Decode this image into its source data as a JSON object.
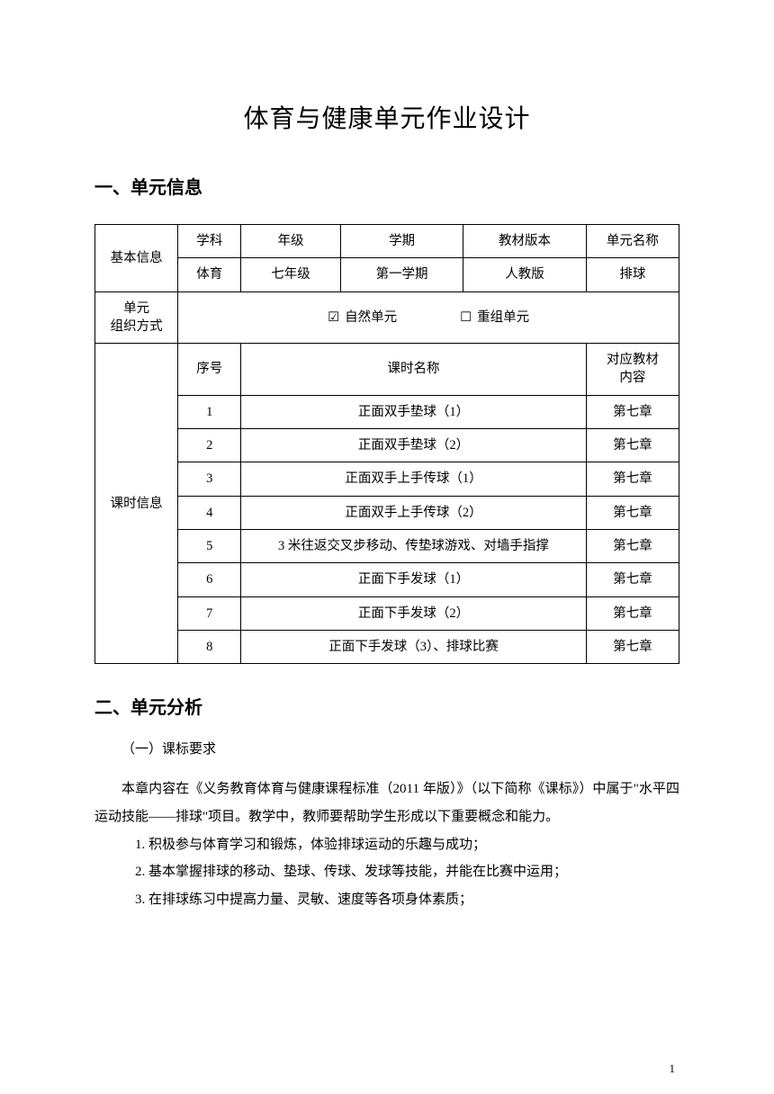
{
  "title": "体育与健康单元作业设计",
  "section1": {
    "heading": "一、单元信息",
    "row_labels": {
      "basic_info": "基本信息",
      "org_mode": "单元\n组织方式",
      "lesson_info": "课时信息"
    },
    "headers": {
      "subject": "学科",
      "grade": "年级",
      "semester": "学期",
      "textbook": "教材版本",
      "unit_name": "单元名称"
    },
    "values": {
      "subject": "体育",
      "grade": "七年级",
      "semester": "第一学期",
      "textbook": "人教版",
      "unit_name": "排球"
    },
    "org": {
      "natural_checked": "☑",
      "natural_label": "自然单元",
      "reorg_checked": "☐",
      "reorg_label": "重组单元"
    },
    "lesson_headers": {
      "seq": "序号",
      "name": "课时名称",
      "ref": "对应教材\n内容"
    },
    "lessons": [
      {
        "seq": "1",
        "name": "正面双手垫球（1）",
        "ref": "第七章"
      },
      {
        "seq": "2",
        "name": "正面双手垫球（2）",
        "ref": "第七章"
      },
      {
        "seq": "3",
        "name": "正面双手上手传球（1）",
        "ref": "第七章"
      },
      {
        "seq": "4",
        "name": "正面双手上手传球（2）",
        "ref": "第七章"
      },
      {
        "seq": "5",
        "name": "3 米往返交叉步移动、传垫球游戏、对墙手指撑",
        "ref": "第七章"
      },
      {
        "seq": "6",
        "name": "正面下手发球（1）",
        "ref": "第七章"
      },
      {
        "seq": "7",
        "name": "正面下手发球（2）",
        "ref": "第七章"
      },
      {
        "seq": "8",
        "name": "正面下手发球（3）、排球比赛",
        "ref": "第七章"
      }
    ]
  },
  "section2": {
    "heading": "二、单元分析",
    "subheading": "（一）课标要求",
    "para1": "本章内容在《义务教育体育与健康课程标准（2011 年版）》（以下简称《课标》）中属于\"水平四运动技能——排球\"项目。教学中，教师要帮助学生形成以下重要概念和能力。",
    "items": [
      "1. 积极参与体育学习和锻炼，体验排球运动的乐趣与成功；",
      "2. 基本掌握排球的移动、垫球、传球、发球等技能，并能在比赛中运用；",
      "3. 在排球练习中提高力量、灵敏、速度等各项身体素质；"
    ]
  },
  "page_number": "1"
}
